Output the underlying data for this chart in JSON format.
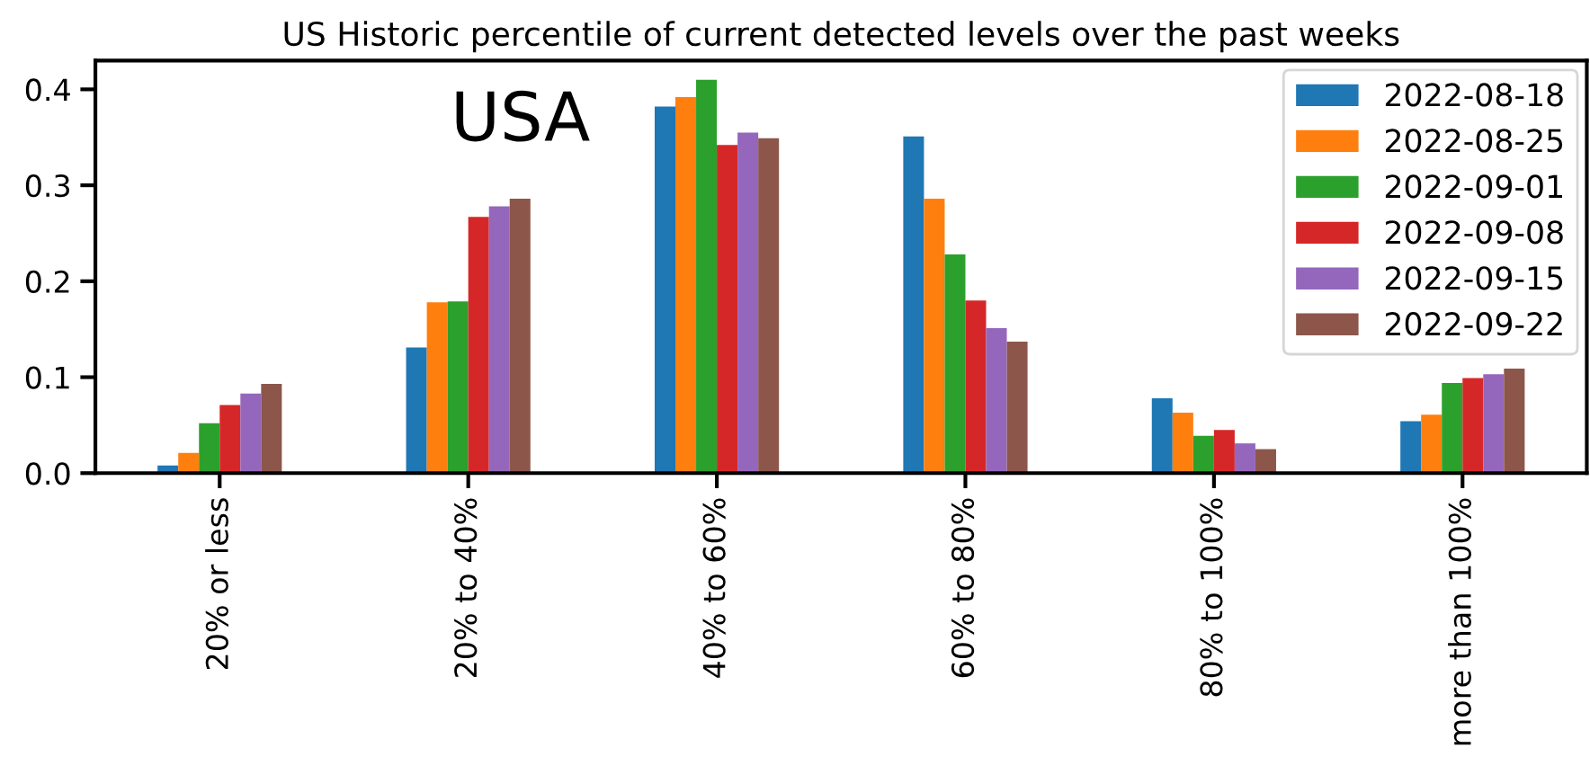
{
  "chart_data": {
    "type": "bar",
    "title": "US Historic percentile of current detected levels over the past weeks",
    "annotations": [
      "USA"
    ],
    "categories": [
      "20% or less",
      "20% to 40%",
      "40% to 60%",
      "60% to 80%",
      "80% to 100%",
      "more than 100%"
    ],
    "series": [
      {
        "name": "2022-08-18",
        "color": "#1f77b4",
        "values": [
          0.008,
          0.131,
          0.382,
          0.351,
          0.078,
          0.054
        ]
      },
      {
        "name": "2022-08-25",
        "color": "#ff7f0e",
        "values": [
          0.021,
          0.178,
          0.392,
          0.286,
          0.063,
          0.061
        ]
      },
      {
        "name": "2022-09-01",
        "color": "#2ca02c",
        "values": [
          0.052,
          0.179,
          0.41,
          0.228,
          0.039,
          0.094
        ]
      },
      {
        "name": "2022-09-08",
        "color": "#d62728",
        "values": [
          0.071,
          0.267,
          0.342,
          0.18,
          0.045,
          0.099
        ]
      },
      {
        "name": "2022-09-15",
        "color": "#9467bd",
        "values": [
          0.083,
          0.278,
          0.355,
          0.151,
          0.031,
          0.103
        ]
      },
      {
        "name": "2022-09-22",
        "color": "#8c564b",
        "values": [
          0.093,
          0.286,
          0.349,
          0.137,
          0.025,
          0.109
        ]
      }
    ],
    "ylim": [
      0,
      0.43
    ],
    "yticks": [
      {
        "value": 0,
        "label": "0.0"
      },
      {
        "value": 0.1,
        "label": "0.1"
      },
      {
        "value": 0.2,
        "label": "0.2"
      },
      {
        "value": 0.3,
        "label": "0.3"
      },
      {
        "value": 0.4,
        "label": "0.4"
      }
    ],
    "grid": false,
    "legend": "top right"
  }
}
